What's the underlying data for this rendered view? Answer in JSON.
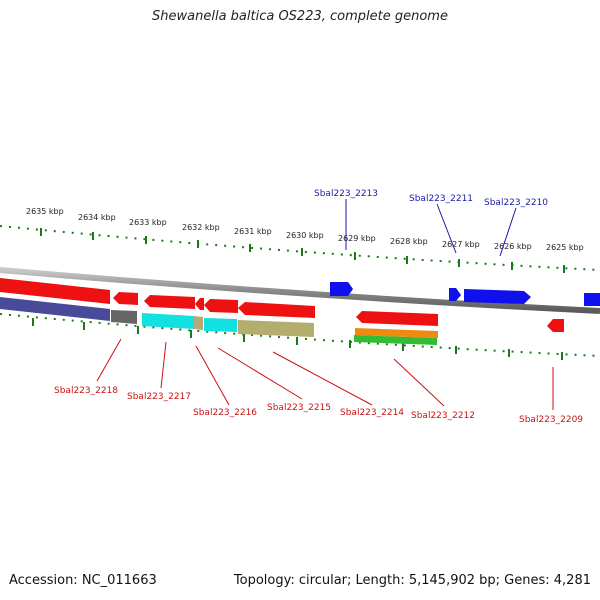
{
  "title": "Shewanella baltica OS223, complete genome",
  "footer": {
    "accession": "Accession: NC_011663",
    "topology": "Topology: circular; Length: 5,145,902 bp; Genes: 4,281"
  },
  "colors": {
    "backbone": "#8f8f8f",
    "tick": "#1a7a1a",
    "forward_gene": "#1010ee",
    "reverse_gene": "#ee1111",
    "forward_label": "#1a1aa6",
    "reverse_label": "#cc1111"
  },
  "scale_ticks": [
    "2635 kbp",
    "2634 kbp",
    "2633 kbp",
    "2632 kbp",
    "2631 kbp",
    "2630 kbp",
    "2629 kbp",
    "2628 kbp",
    "2627 kbp",
    "2626 kbp",
    "2625 kbp"
  ],
  "forward_labels": [
    "Sbal223_2213",
    "Sbal223_2211",
    "Sbal223_2210"
  ],
  "reverse_labels": [
    "Sbal223_2218",
    "Sbal223_2217",
    "Sbal223_2216",
    "Sbal223_2215",
    "Sbal223_2214",
    "Sbal223_2212",
    "Sbal223_2209"
  ]
}
